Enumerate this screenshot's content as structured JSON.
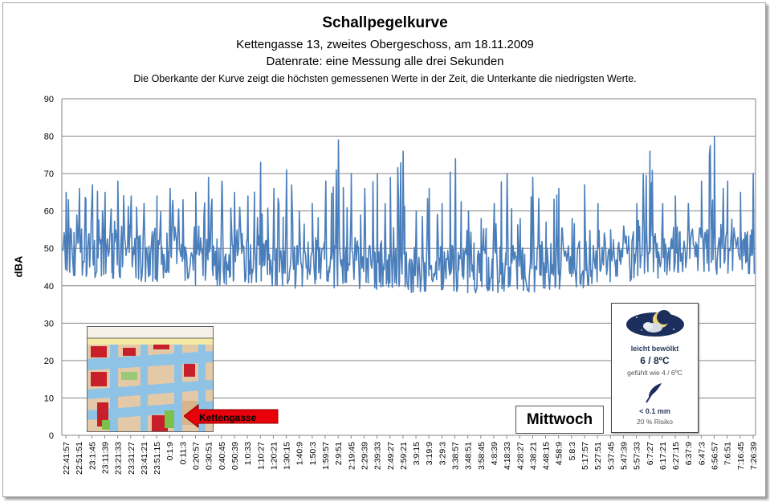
{
  "chart_data": {
    "type": "line",
    "title": "Schallpegelkurve",
    "subtitle_lines": [
      "Kettengasse 13, zweites Obergeschoss, am 18.11.2009",
      "Datenrate: eine Messung alle drei Sekunden",
      "Die Oberkante der Kurve zeigt die höchsten gemessenen Werte  in der Zeit, die Unterkante  die niedrigsten Werte."
    ],
    "xlabel": "",
    "ylabel": "dBA",
    "ylim": [
      0,
      90
    ],
    "yticks": [
      0,
      10,
      20,
      30,
      40,
      50,
      60,
      70,
      80,
      90
    ],
    "grid": true,
    "x_tick_labels": [
      "22:41:57",
      "22:51:51",
      "23:1:45",
      "23:11:39",
      "23:21:33",
      "23:31:27",
      "23:41:21",
      "23:51:15",
      "0:1:9",
      "0:11:3",
      "0:20:57",
      "0:30:51",
      "0:40:45",
      "0:50:39",
      "1:0:33",
      "1:10:27",
      "1:20:21",
      "1:30:15",
      "1:40:9",
      "1:50:3",
      "1:59:57",
      "2:9:51",
      "2:19:45",
      "2:29:39",
      "2:39:33",
      "2:49:27",
      "2:59:21",
      "3:9:15",
      "3:19:9",
      "3:29:3",
      "3:38:57",
      "3:48:51",
      "3:58:45",
      "4:8:39",
      "4:18:33",
      "4:28:27",
      "4:38:21",
      "4:48:15",
      "4:58:9",
      "5:8:3",
      "5:17:57",
      "5:27:51",
      "5:37:45",
      "5:47:39",
      "5:57:33",
      "6:7:27",
      "6:17:21",
      "6:27:15",
      "6:37:9",
      "6:47:3",
      "6:56:57",
      "7:6:51",
      "7:16:45",
      "7:26:39"
    ],
    "series": [
      {
        "color": "#4a7ebb",
        "envelope": [
          {
            "t": "22:41:57",
            "min": 43,
            "max": 65
          },
          {
            "t": "22:51:51",
            "min": 42,
            "max": 66
          },
          {
            "t": "23:1:45",
            "min": 42,
            "max": 67
          },
          {
            "t": "23:11:39",
            "min": 42,
            "max": 65
          },
          {
            "t": "23:21:33",
            "min": 42,
            "max": 68
          },
          {
            "t": "23:31:27",
            "min": 41,
            "max": 64
          },
          {
            "t": "23:41:21",
            "min": 41,
            "max": 62
          },
          {
            "t": "23:51:15",
            "min": 41,
            "max": 64
          },
          {
            "t": "0:1:9",
            "min": 42,
            "max": 66
          },
          {
            "t": "0:11:3",
            "min": 41,
            "max": 63
          },
          {
            "t": "0:20:57",
            "min": 40,
            "max": 65
          },
          {
            "t": "0:30:51",
            "min": 41,
            "max": 69
          },
          {
            "t": "0:40:45",
            "min": 40,
            "max": 68
          },
          {
            "t": "0:50:39",
            "min": 41,
            "max": 65
          },
          {
            "t": "1:0:33",
            "min": 40,
            "max": 64
          },
          {
            "t": "1:10:27",
            "min": 41,
            "max": 73
          },
          {
            "t": "1:20:21",
            "min": 40,
            "max": 66
          },
          {
            "t": "1:30:15",
            "min": 40,
            "max": 71
          },
          {
            "t": "1:40:9",
            "min": 39,
            "max": 60
          },
          {
            "t": "1:50:3",
            "min": 40,
            "max": 62
          },
          {
            "t": "1:59:57",
            "min": 40,
            "max": 68
          },
          {
            "t": "2:9:51",
            "min": 39,
            "max": 79
          },
          {
            "t": "2:19:45",
            "min": 40,
            "max": 70
          },
          {
            "t": "2:29:39",
            "min": 39,
            "max": 66
          },
          {
            "t": "2:39:33",
            "min": 39,
            "max": 70
          },
          {
            "t": "2:49:27",
            "min": 39,
            "max": 69
          },
          {
            "t": "2:59:21",
            "min": 39,
            "max": 76
          },
          {
            "t": "3:9:15",
            "min": 38,
            "max": 60
          },
          {
            "t": "3:19:9",
            "min": 38,
            "max": 66
          },
          {
            "t": "3:29:3",
            "min": 38,
            "max": 62
          },
          {
            "t": "3:38:57",
            "min": 38,
            "max": 74
          },
          {
            "t": "3:48:51",
            "min": 38,
            "max": 60
          },
          {
            "t": "3:58:45",
            "min": 38,
            "max": 58
          },
          {
            "t": "4:8:39",
            "min": 38,
            "max": 62
          },
          {
            "t": "4:18:33",
            "min": 38,
            "max": 70
          },
          {
            "t": "4:28:27",
            "min": 38,
            "max": 58
          },
          {
            "t": "4:38:21",
            "min": 38,
            "max": 69
          },
          {
            "t": "4:48:15",
            "min": 39,
            "max": 57
          },
          {
            "t": "4:58:9",
            "min": 39,
            "max": 66
          },
          {
            "t": "5:8:3",
            "min": 39,
            "max": 58
          },
          {
            "t": "5:17:57",
            "min": 39,
            "max": 67
          },
          {
            "t": "5:27:51",
            "min": 40,
            "max": 62
          },
          {
            "t": "5:37:45",
            "min": 41,
            "max": 55
          },
          {
            "t": "5:47:39",
            "min": 41,
            "max": 56
          },
          {
            "t": "5:57:33",
            "min": 41,
            "max": 62
          },
          {
            "t": "6:7:27",
            "min": 42,
            "max": 76
          },
          {
            "t": "6:17:21",
            "min": 42,
            "max": 62
          },
          {
            "t": "6:27:15",
            "min": 43,
            "max": 64
          },
          {
            "t": "6:37:9",
            "min": 43,
            "max": 62
          },
          {
            "t": "6:47:3",
            "min": 43,
            "max": 68
          },
          {
            "t": "6:56:57",
            "min": 43,
            "max": 80
          },
          {
            "t": "7:6:51",
            "min": 43,
            "max": 68
          },
          {
            "t": "7:16:45",
            "min": 43,
            "max": 65
          },
          {
            "t": "7:26:39",
            "min": 43,
            "max": 70
          }
        ]
      }
    ]
  },
  "annotations": {
    "map_arrow_label": "Kettengasse",
    "day_label": "Mittwoch",
    "arrow_color": "#e8000b"
  },
  "weather": {
    "icon": "moon-cloud-icon",
    "condition": "leicht bewölkt",
    "temperature": "6 / 8ºC",
    "felt": "gefühlt wie 4 / 6ºC",
    "precip_icon": "umbrella-icon",
    "precipitation": "< 0.1 mm",
    "risk": "20 % Risiko"
  }
}
